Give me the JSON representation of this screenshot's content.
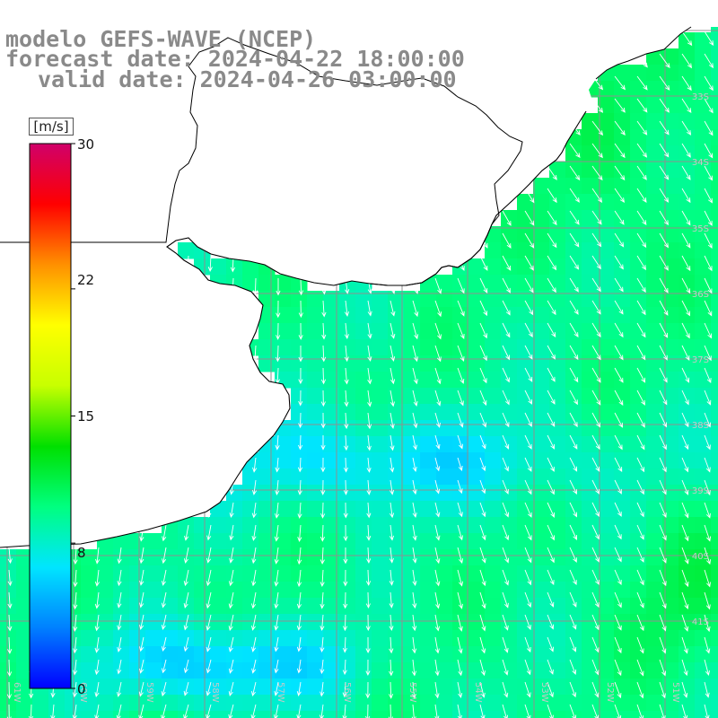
{
  "title": {
    "line1": "modelo GEFS-WAVE (NCEP)",
    "line2": "forecast date: 2024-04-22 18:00:00",
    "line3": "valid date: 2024-04-26 03:00:00"
  },
  "colorbar": {
    "unit": "[m/s]",
    "ticks": [
      {
        "label": "30",
        "value": 30
      },
      {
        "label": "22",
        "value": 22
      },
      {
        "label": "15",
        "value": 15
      },
      {
        "label": "8",
        "value": 8
      },
      {
        "label": "0",
        "value": 0
      }
    ],
    "colors": [
      "#0000ff",
      "#0080ff",
      "#00e5ff",
      "#00ff80",
      "#00e000",
      "#c8ff00",
      "#ffff00",
      "#ff9000",
      "#ff0000",
      "#d0006a"
    ]
  },
  "graticule": {
    "lat_labels": [
      "33S",
      "34S",
      "35S",
      "36S",
      "37S",
      "38S",
      "39S",
      "40S",
      "41S"
    ],
    "lon_labels": [
      "61W",
      "60W",
      "59W",
      "58W",
      "57W",
      "56W",
      "55W",
      "54W",
      "53W",
      "52W",
      "51W"
    ]
  },
  "wind_field": {
    "value_range": [
      0,
      30
    ],
    "units": "m/s",
    "regions": [
      {
        "where": "northeast coastal band",
        "speed": 10.5
      },
      {
        "where": "center-north",
        "speed": 9.5
      },
      {
        "where": "central band",
        "speed": 6.5
      },
      {
        "where": "southeast corner",
        "speed": 11.0
      },
      {
        "where": "southwest",
        "speed": 5.5
      }
    ]
  }
}
